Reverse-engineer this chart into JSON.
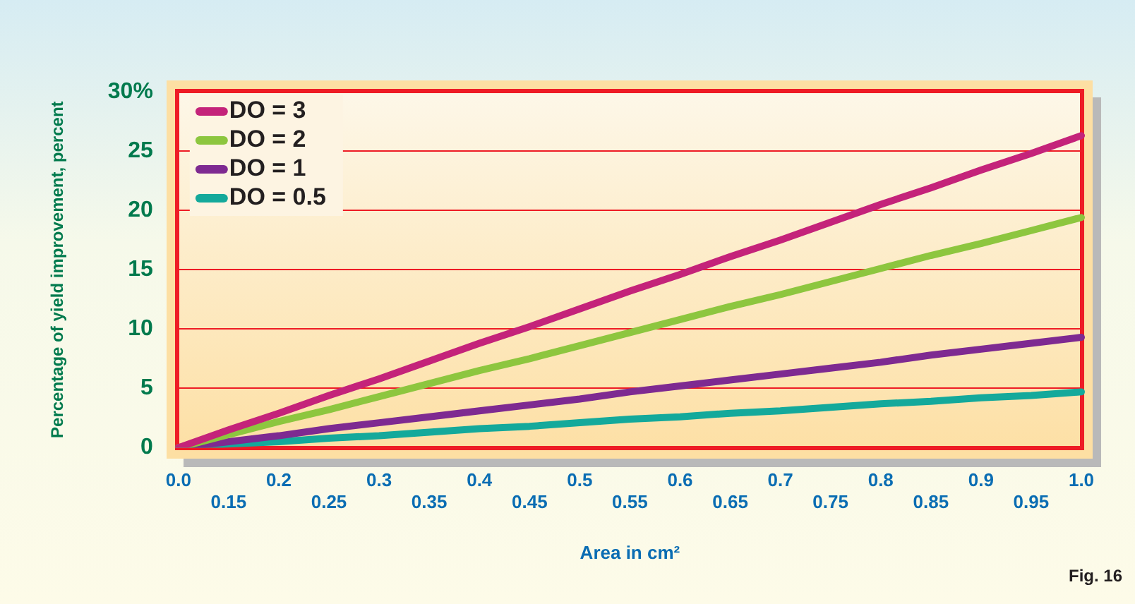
{
  "chart_data": {
    "type": "line",
    "xlabel": "Area in cm²",
    "ylabel": "Percentage of yield improvement, percent",
    "categories": [
      "0.0",
      "0.15",
      "0.2",
      "0.25",
      "0.3",
      "0.35",
      "0.4",
      "0.45",
      "0.5",
      "0.55",
      "0.6",
      "0.65",
      "0.7",
      "0.75",
      "0.8",
      "0.85",
      "0.9",
      "0.95",
      "1.0"
    ],
    "series": [
      {
        "name": "DO = 3",
        "color": "#c4237a",
        "values": [
          0,
          1.5,
          2.9,
          4.4,
          5.8,
          7.3,
          8.8,
          10.2,
          11.7,
          13.2,
          14.6,
          16.1,
          17.5,
          19.0,
          20.5,
          21.9,
          23.4,
          24.8,
          26.3
        ]
      },
      {
        "name": "DO = 2",
        "color": "#8dc63f",
        "values": [
          0,
          1.1,
          2.2,
          3.2,
          4.3,
          5.4,
          6.5,
          7.5,
          8.6,
          9.7,
          10.8,
          11.9,
          12.9,
          14.0,
          15.1,
          16.2,
          17.2,
          18.3,
          19.4
        ]
      },
      {
        "name": "DO = 1",
        "color": "#7e2a91",
        "values": [
          0,
          0.5,
          1.0,
          1.6,
          2.1,
          2.6,
          3.1,
          3.6,
          4.1,
          4.7,
          5.2,
          5.7,
          6.2,
          6.7,
          7.2,
          7.8,
          8.3,
          8.8,
          9.3
        ]
      },
      {
        "name": "DO = 0.5",
        "color": "#14a99b",
        "values": [
          0,
          0.3,
          0.5,
          0.8,
          1.0,
          1.3,
          1.6,
          1.8,
          2.1,
          2.4,
          2.6,
          2.9,
          3.1,
          3.4,
          3.7,
          3.9,
          4.2,
          4.4,
          4.7
        ]
      }
    ],
    "ylim": [
      0,
      30
    ],
    "yticks": [
      0,
      5,
      10,
      15,
      20,
      25,
      {
        "value": 30,
        "label": "30%"
      }
    ],
    "grid": "y",
    "legend": "top left",
    "marker": "none",
    "line_style": "solid",
    "annotations": [
      "Fig. 16"
    ]
  }
}
